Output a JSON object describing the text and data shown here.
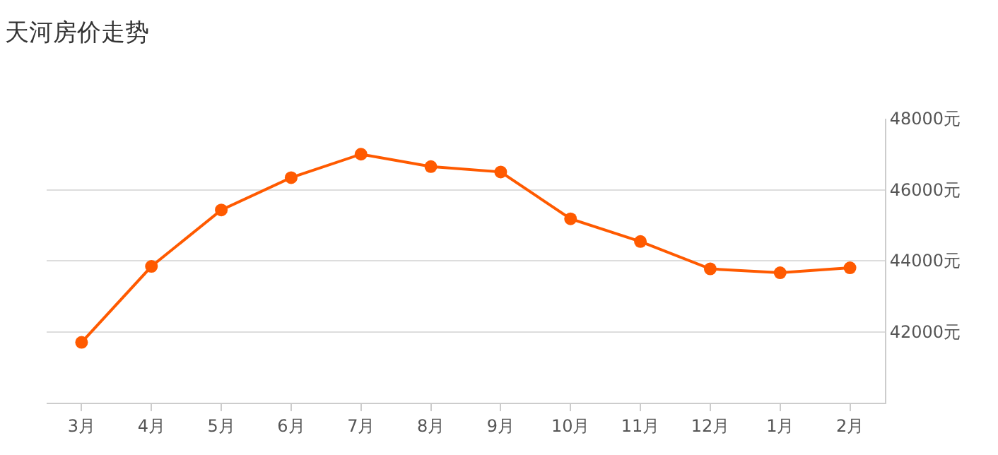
{
  "chart_data": {
    "type": "line",
    "title": "天河房价走势",
    "categories": [
      "3月",
      "4月",
      "5月",
      "6月",
      "7月",
      "8月",
      "9月",
      "10月",
      "11月",
      "12月",
      "1月",
      "2月"
    ],
    "series": [
      {
        "color": "#ff5a00",
        "values": [
          41700,
          43840,
          45430,
          46340,
          47000,
          46650,
          46500,
          45180,
          44540,
          43770,
          43660,
          43800
        ]
      }
    ],
    "ylim": [
      40000,
      48000
    ],
    "yticks": [
      {
        "value": 42000,
        "label": "42000元"
      },
      {
        "value": 44000,
        "label": "44000元"
      },
      {
        "value": 46000,
        "label": "46000元"
      },
      {
        "value": 48000,
        "label": "48000元"
      }
    ],
    "grid": "y",
    "marker": "circle",
    "line_style": "solid"
  }
}
